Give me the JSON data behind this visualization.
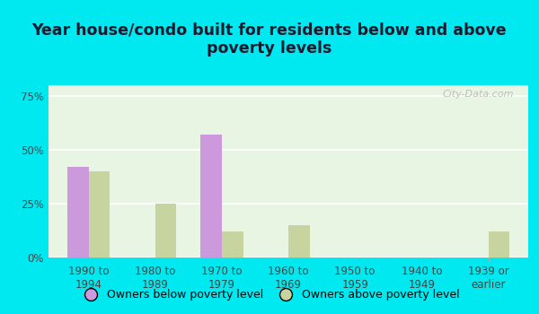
{
  "title": "Year house/condo built for residents below and above\npoverty levels",
  "categories": [
    "1990 to\n1994",
    "1980 to\n1989",
    "1970 to\n1979",
    "1960 to\n1969",
    "1950 to\n1959",
    "1940 to\n1949",
    "1939 or\nearlier"
  ],
  "below_poverty": [
    42.0,
    0.0,
    57.0,
    0.0,
    0.0,
    0.0,
    0.0
  ],
  "above_poverty": [
    40.0,
    25.0,
    12.0,
    15.0,
    0.0,
    0.0,
    12.0
  ],
  "below_color": "#cc99dd",
  "above_color": "#c8d4a0",
  "plot_bg_color": "#e8f5e2",
  "outer_bg_color": "#00e8f0",
  "ylim": [
    0,
    80
  ],
  "yticks": [
    0,
    25,
    50,
    75
  ],
  "ytick_labels": [
    "0%",
    "25%",
    "50%",
    "75%"
  ],
  "bar_width": 0.32,
  "legend_below": "Owners below poverty level",
  "legend_above": "Owners above poverty level",
  "title_fontsize": 12.5,
  "tick_fontsize": 8.5,
  "legend_fontsize": 9,
  "watermark": "City-Data.com"
}
